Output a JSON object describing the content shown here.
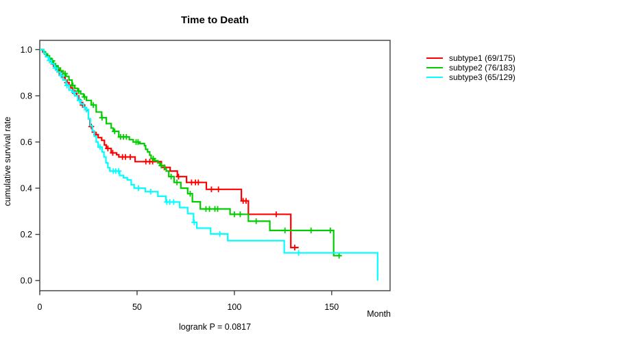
{
  "chart_data": {
    "type": "line",
    "subtype": "kaplan-meier-step",
    "title": "Time to Death",
    "xlabel": "Month",
    "ylabel": "cumulative survival rate",
    "annotation": "logrank P = 0.0817",
    "x_ticks": [
      0,
      50,
      100,
      150
    ],
    "y_ticks": [
      0.0,
      0.2,
      0.4,
      0.6,
      0.8,
      1.0
    ],
    "xlim": [
      0,
      180
    ],
    "ylim": [
      0,
      1
    ],
    "grid": false,
    "legend_position": "right-outside",
    "axis_color": "#3c3c3c",
    "text_color": "#000000",
    "series": [
      {
        "name": "subtype1 (69/175)",
        "color": "#ff0000",
        "end_month": 133,
        "steps": [
          [
            0,
            1.0
          ],
          [
            1.5,
            0.99
          ],
          [
            2.5,
            0.982
          ],
          [
            3.5,
            0.971
          ],
          [
            4.5,
            0.96
          ],
          [
            5.5,
            0.949
          ],
          [
            6.5,
            0.937
          ],
          [
            7.5,
            0.926
          ],
          [
            8.5,
            0.914
          ],
          [
            9.5,
            0.903
          ],
          [
            10.5,
            0.891
          ],
          [
            11.5,
            0.88
          ],
          [
            13,
            0.868
          ],
          [
            14,
            0.857
          ],
          [
            15,
            0.846
          ],
          [
            16,
            0.834
          ],
          [
            17,
            0.823
          ],
          [
            18,
            0.811
          ],
          [
            19,
            0.8
          ],
          [
            20,
            0.783
          ],
          [
            21,
            0.771
          ],
          [
            22,
            0.76
          ],
          [
            23,
            0.749
          ],
          [
            24,
            0.737
          ],
          [
            25,
            0.7
          ],
          [
            25.8,
            0.667
          ],
          [
            27,
            0.643
          ],
          [
            28.2,
            0.632
          ],
          [
            30,
            0.619
          ],
          [
            31.8,
            0.607
          ],
          [
            33.2,
            0.587
          ],
          [
            34.2,
            0.572
          ],
          [
            36.7,
            0.553
          ],
          [
            39.5,
            0.545
          ],
          [
            40.6,
            0.535
          ],
          [
            49,
            0.515
          ],
          [
            62.5,
            0.49
          ],
          [
            67,
            0.474
          ],
          [
            70.7,
            0.45
          ],
          [
            75.4,
            0.425
          ],
          [
            85.6,
            0.395
          ],
          [
            103.6,
            0.345
          ],
          [
            107.2,
            0.287
          ],
          [
            129,
            0.143
          ]
        ],
        "censor_months": [
          7,
          10,
          14,
          18,
          22,
          26.5,
          29,
          35,
          37.5,
          42.5,
          44,
          46.5,
          54.5,
          56.5,
          58,
          64,
          71.3,
          78,
          80,
          81.5,
          88.2,
          91.8,
          104.5,
          106,
          121.5,
          131
        ]
      },
      {
        "name": "subtype2 (76/183)",
        "color": "#00cd00",
        "end_month": 154.8,
        "steps": [
          [
            0,
            1.0
          ],
          [
            2,
            0.99
          ],
          [
            3,
            0.981
          ],
          [
            4,
            0.973
          ],
          [
            5,
            0.962
          ],
          [
            6,
            0.951
          ],
          [
            7,
            0.94
          ],
          [
            8,
            0.93
          ],
          [
            9,
            0.92
          ],
          [
            10.6,
            0.908
          ],
          [
            12,
            0.896
          ],
          [
            13.5,
            0.884
          ],
          [
            15,
            0.868
          ],
          [
            16.6,
            0.845
          ],
          [
            18,
            0.832
          ],
          [
            19.5,
            0.82
          ],
          [
            21,
            0.808
          ],
          [
            22.5,
            0.795
          ],
          [
            24,
            0.78
          ],
          [
            26.5,
            0.76
          ],
          [
            29,
            0.73
          ],
          [
            31.8,
            0.705
          ],
          [
            34.2,
            0.68
          ],
          [
            36.7,
            0.66
          ],
          [
            37.8,
            0.646
          ],
          [
            40.6,
            0.622
          ],
          [
            46,
            0.61
          ],
          [
            48,
            0.6
          ],
          [
            51.2,
            0.593
          ],
          [
            53.8,
            0.584
          ],
          [
            54.4,
            0.568
          ],
          [
            55.4,
            0.557
          ],
          [
            56.5,
            0.543
          ],
          [
            57.2,
            0.528
          ],
          [
            59,
            0.519
          ],
          [
            60.7,
            0.509
          ],
          [
            61.8,
            0.498
          ],
          [
            64.2,
            0.483
          ],
          [
            65,
            0.474
          ],
          [
            66.3,
            0.45
          ],
          [
            69,
            0.425
          ],
          [
            72.5,
            0.4
          ],
          [
            76,
            0.376
          ],
          [
            78.4,
            0.341
          ],
          [
            82.5,
            0.31
          ],
          [
            97.8,
            0.287
          ],
          [
            107.2,
            0.257
          ],
          [
            118.2,
            0.217
          ],
          [
            151,
            0.108
          ]
        ],
        "censor_months": [
          6.5,
          9.5,
          13,
          17,
          20,
          23,
          27.5,
          32,
          38.5,
          41.5,
          43,
          44.5,
          49.5,
          50.5,
          58.3,
          62.5,
          67.5,
          70.5,
          77.3,
          85.4,
          87.2,
          90,
          91.4,
          100,
          103,
          111.2,
          126,
          139.4,
          149.3,
          153.8
        ]
      },
      {
        "name": "subtype3 (65/129)",
        "color": "#00ffff",
        "end_month": 173.6,
        "steps": [
          [
            0,
            1.0
          ],
          [
            2,
            0.984
          ],
          [
            3,
            0.969
          ],
          [
            4.5,
            0.953
          ],
          [
            6,
            0.938
          ],
          [
            7.5,
            0.92
          ],
          [
            9,
            0.903
          ],
          [
            10.5,
            0.888
          ],
          [
            12,
            0.868
          ],
          [
            13.5,
            0.845
          ],
          [
            15,
            0.825
          ],
          [
            16.6,
            0.815
          ],
          [
            18,
            0.8
          ],
          [
            19.5,
            0.78
          ],
          [
            21,
            0.765
          ],
          [
            22.5,
            0.75
          ],
          [
            23.6,
            0.74
          ],
          [
            25,
            0.7
          ],
          [
            26,
            0.67
          ],
          [
            27,
            0.648
          ],
          [
            28,
            0.625
          ],
          [
            29,
            0.6
          ],
          [
            30,
            0.578
          ],
          [
            32,
            0.557
          ],
          [
            33,
            0.535
          ],
          [
            34,
            0.51
          ],
          [
            35,
            0.489
          ],
          [
            36,
            0.474
          ],
          [
            41,
            0.455
          ],
          [
            43,
            0.445
          ],
          [
            45,
            0.436
          ],
          [
            47,
            0.415
          ],
          [
            48.5,
            0.4
          ],
          [
            54.2,
            0.385
          ],
          [
            60.7,
            0.365
          ],
          [
            64.8,
            0.34
          ],
          [
            71.9,
            0.316
          ],
          [
            76,
            0.29
          ],
          [
            79,
            0.252
          ],
          [
            80.7,
            0.227
          ],
          [
            87.8,
            0.202
          ],
          [
            96.6,
            0.173
          ],
          [
            125.6,
            0.12
          ],
          [
            173.6,
            0.0
          ]
        ],
        "censor_months": [
          5,
          8,
          11,
          14,
          17.5,
          20.5,
          24,
          31,
          37.8,
          39,
          40.5,
          50.7,
          57,
          65.3,
          66.8,
          68.8,
          79.4,
          92.5,
          133
        ]
      }
    ]
  }
}
